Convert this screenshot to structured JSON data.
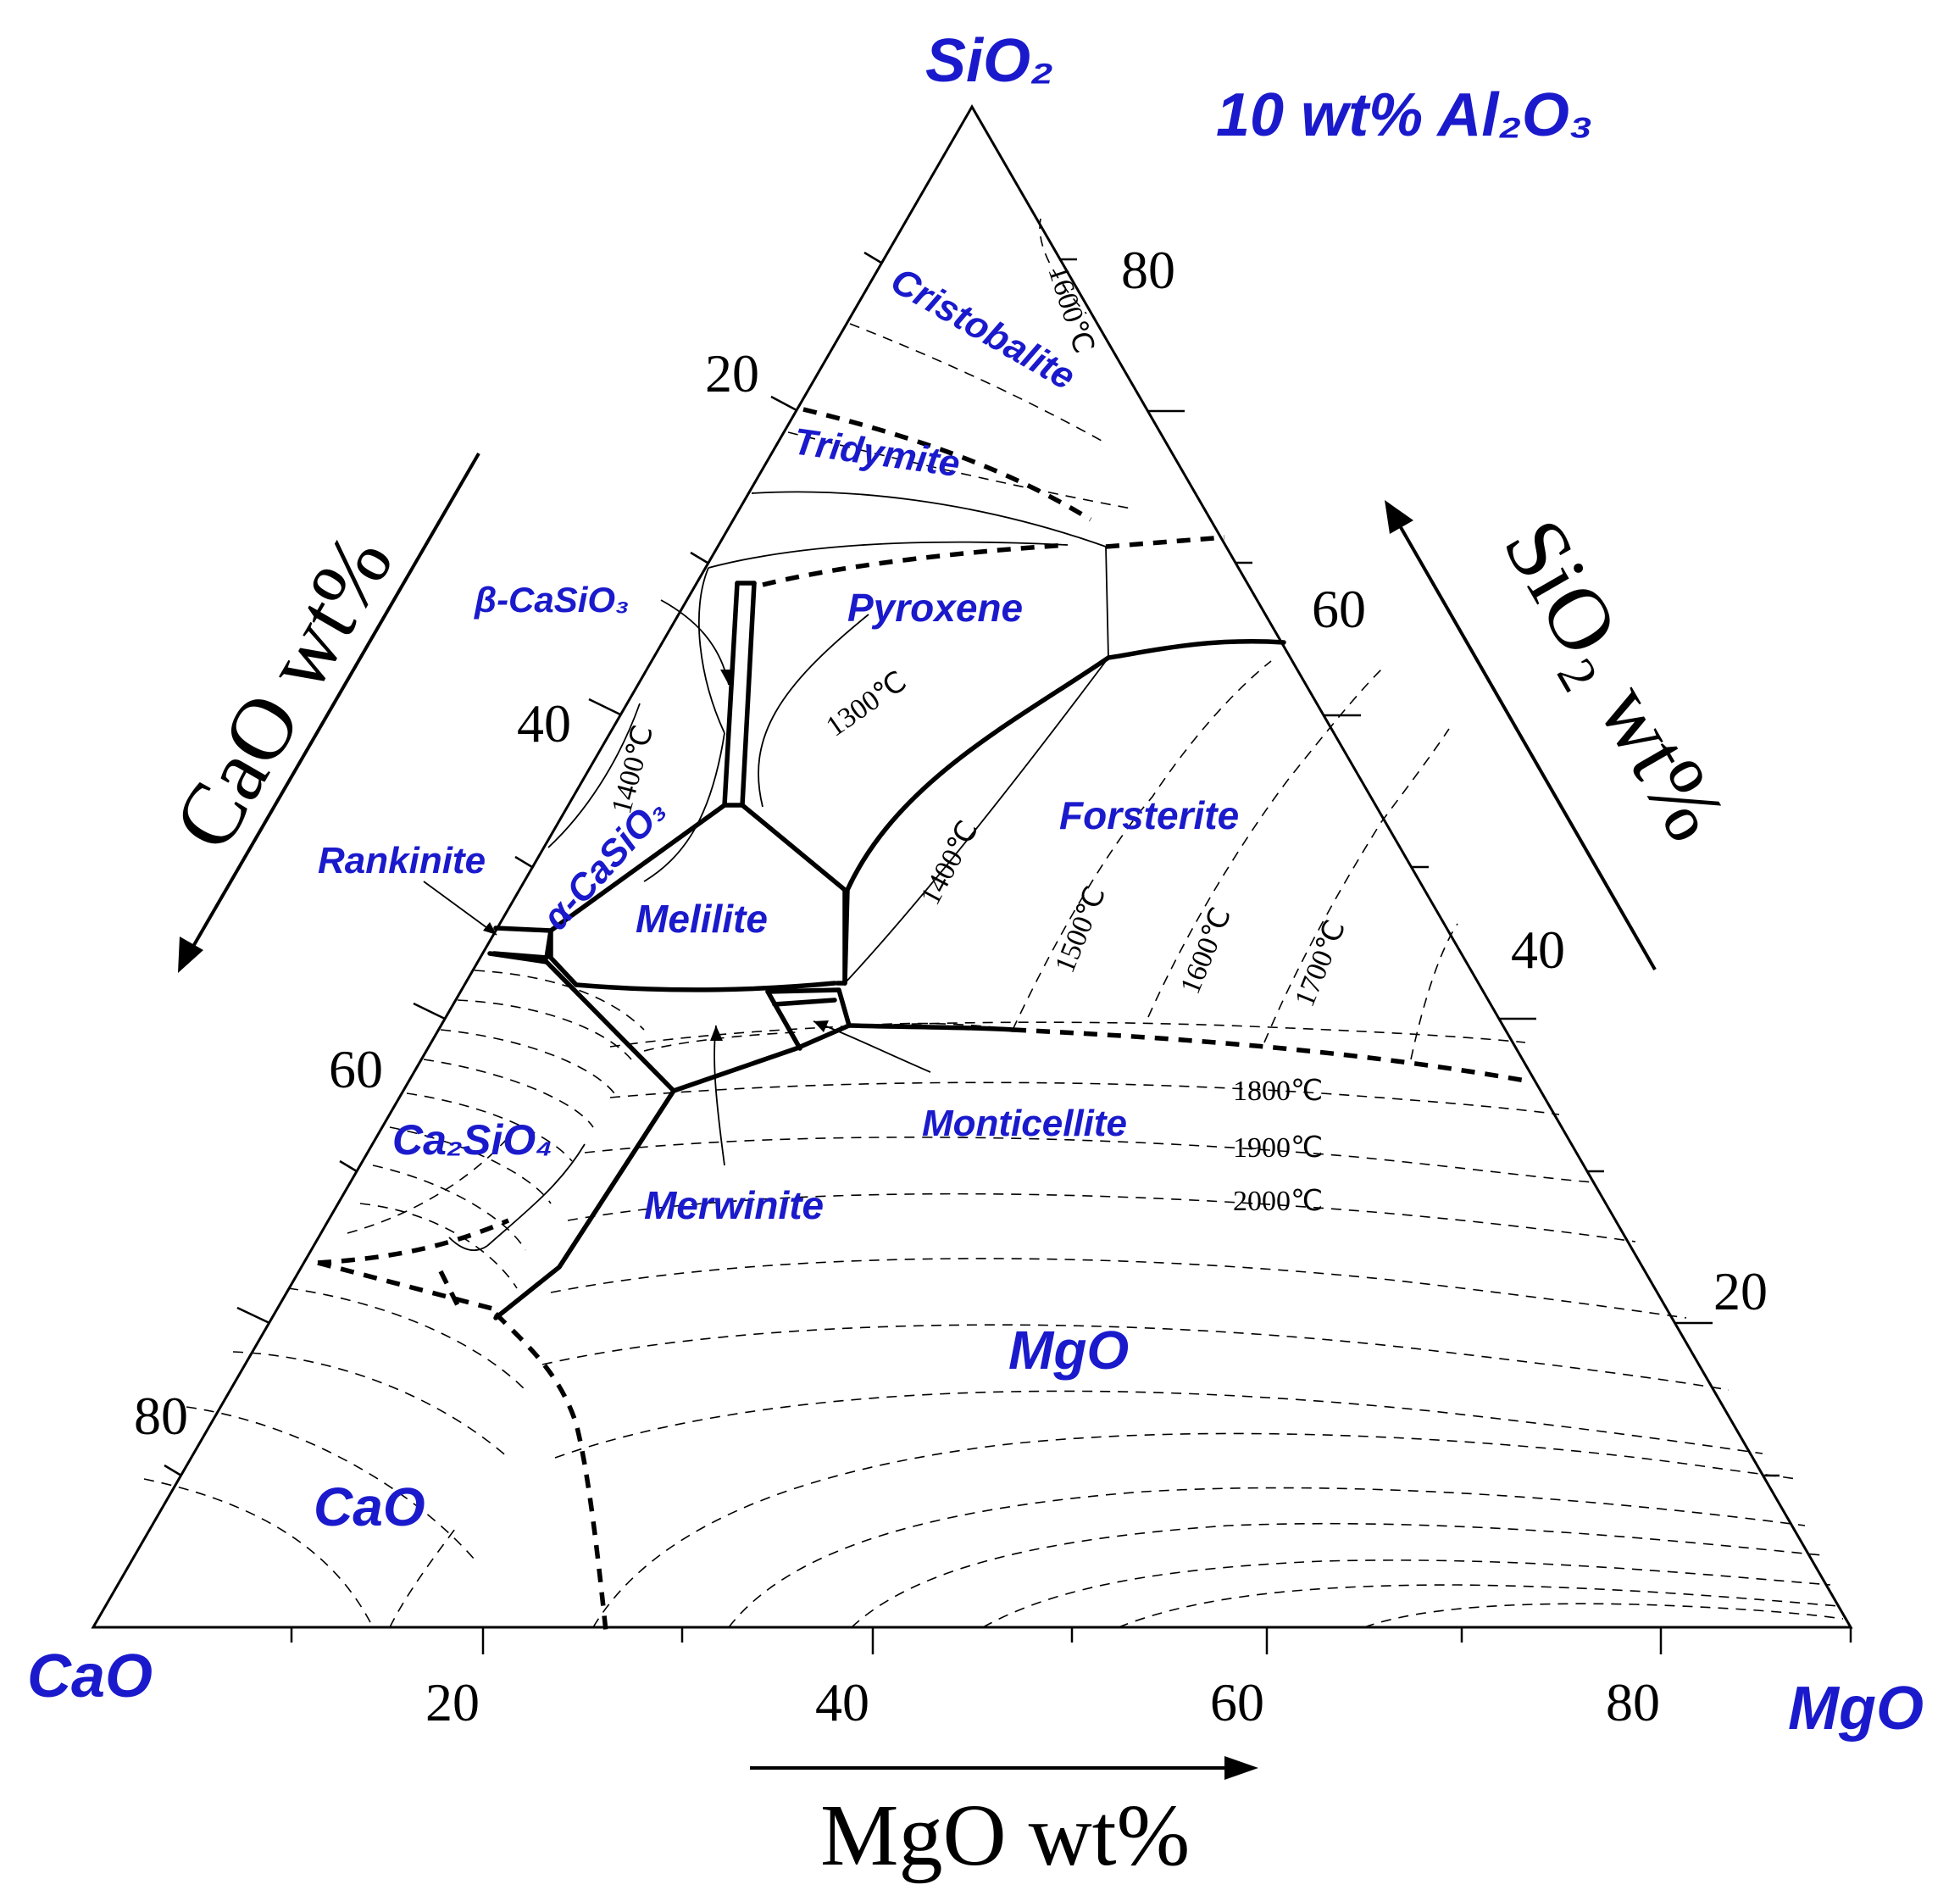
{
  "diagram": {
    "title": "10 wt% Al₂O₃",
    "vertices": {
      "top": "SiO₂",
      "left": "CaO",
      "right": "MgO"
    },
    "axes": {
      "cao_title": "CaO wt%",
      "sio2_title": "SiO₂ wt%",
      "mgo_title": "MgO wt%",
      "cao_ticks": [
        "20",
        "40",
        "60",
        "80"
      ],
      "sio2_ticks": [
        "80",
        "60",
        "40",
        "20"
      ],
      "mgo_ticks": [
        "20",
        "40",
        "60",
        "80"
      ]
    },
    "phases": {
      "cristobalite": "Cristobalite",
      "tridymite": "Tridymite",
      "beta_casio3": "β-CaSiO₃",
      "pyroxene": "Pyroxene",
      "alpha_casio3": "α-CaSiO₃",
      "rankinite": "Rankinite",
      "melilite": "Melilite",
      "forsterite": "Forsterite",
      "ca2sio4": "Ca₂SiO₄",
      "monticellite": "Monticellite",
      "merwinite": "Merwinite",
      "mgo": "MgO",
      "cao": "CaO"
    },
    "isotherms": {
      "t1600_top": "1600℃",
      "t1300": "1300℃",
      "t1400_left": "1400℃",
      "t1400_mid": "1400℃",
      "t1500": "1500℃",
      "t1600": "1600℃",
      "t1700": "1700℃",
      "t1800": "1800℃",
      "t1900": "1900℃",
      "t2000": "2000℃"
    }
  }
}
